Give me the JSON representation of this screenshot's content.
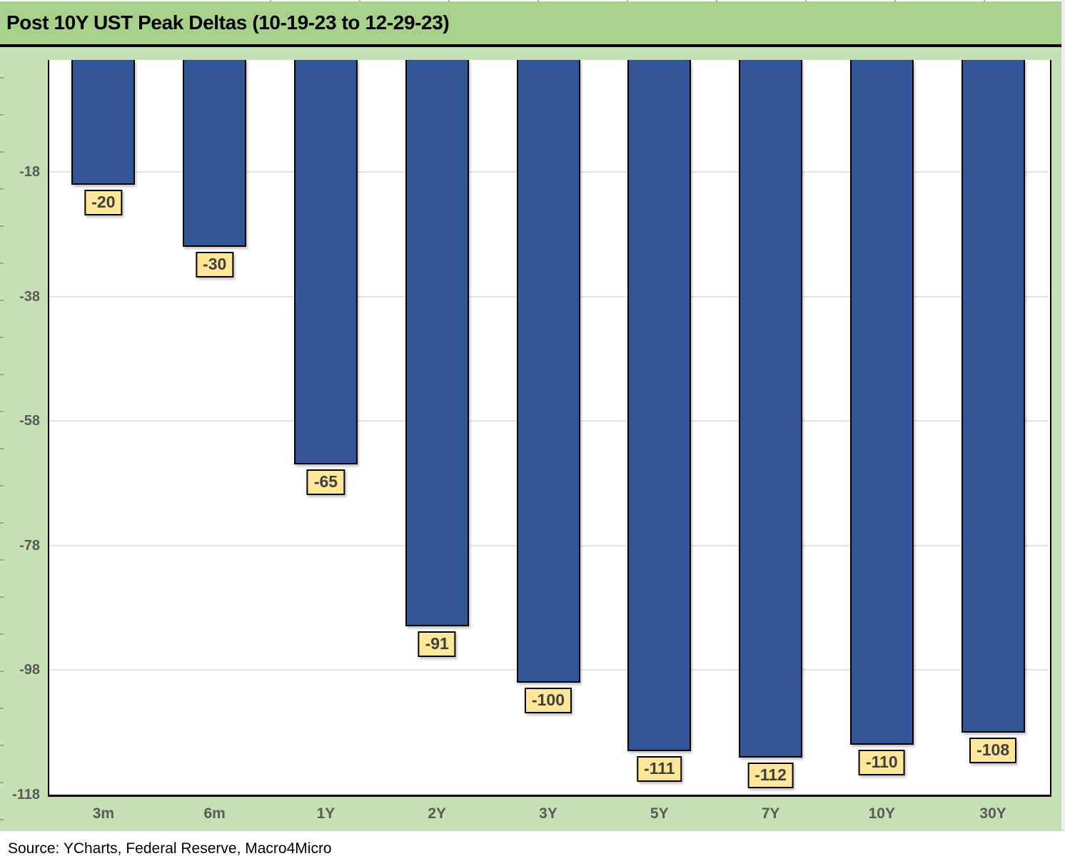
{
  "header": {
    "title": "Post 10Y UST Peak Deltas (10-19-23 to 12-29-23)"
  },
  "chart_data": {
    "type": "bar",
    "title": "Post 10Y UST Peak Deltas (10-19-23 to 12-29-23)",
    "categories": [
      "3m",
      "6m",
      "1Y",
      "2Y",
      "3Y",
      "5Y",
      "7Y",
      "10Y",
      "30Y"
    ],
    "values": [
      -20,
      -30,
      -65,
      -91,
      -100,
      -111,
      -112,
      -110,
      -108
    ],
    "data_labels": [
      "-20",
      "-30",
      "-65",
      "-91",
      "-100",
      "-111",
      "-112",
      "-110",
      "-108"
    ],
    "xlabel": "",
    "ylabel": "",
    "ylim": [
      -118,
      0
    ],
    "yticks": [
      -18,
      -38,
      -58,
      -78,
      -98,
      -118
    ],
    "grid": "horizontal-light",
    "legend": "none",
    "bar_color": "#325593",
    "bar_border_color": "#000000",
    "value_label_bg": "#FFE699",
    "value_label_text_color": "#3F3F3F",
    "axis_text_color": "#595959"
  },
  "source": {
    "text": "Source: YCharts, Federal Reserve, Macro4Micro"
  },
  "colors": {
    "title_bar_bg": "#A9D18E",
    "chart_bg": "#C6E0B4",
    "plot_bg": "#FFFFFF",
    "title_text": "#000000"
  }
}
